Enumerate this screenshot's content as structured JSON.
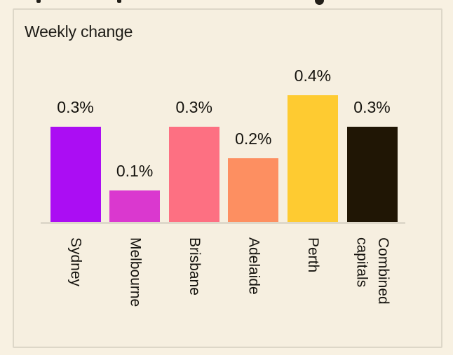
{
  "page": {
    "background_color": "#F8F1E2",
    "card_background_color": "#F6EFE0",
    "card_border_color": "#DDD7C8"
  },
  "card": {
    "title": "Weekly change"
  },
  "chart_data": {
    "type": "bar",
    "title": "Weekly change",
    "categories": [
      "Sydney",
      "Melbourne",
      "Brisbane",
      "Adelaide",
      "Perth",
      "Combined\ncapitals"
    ],
    "values": [
      0.3,
      0.1,
      0.3,
      0.2,
      0.4,
      0.3
    ],
    "value_labels": [
      "0.3%",
      "0.1%",
      "0.3%",
      "0.2%",
      "0.4%",
      "0.3%"
    ],
    "unit": "%",
    "bar_colors": [
      "#AB0DF3",
      "#DA38CF",
      "#FD7082",
      "#FD8F61",
      "#FECB31",
      "#201605"
    ],
    "xlabel": "",
    "ylabel": "",
    "ylim": [
      0,
      0.45
    ],
    "grid": false,
    "legend": "none",
    "category_label_rotation_deg": 90,
    "axis_line_color": "#DED8CA",
    "value_label_color": "#15130E",
    "category_label_color": "#15130E"
  }
}
